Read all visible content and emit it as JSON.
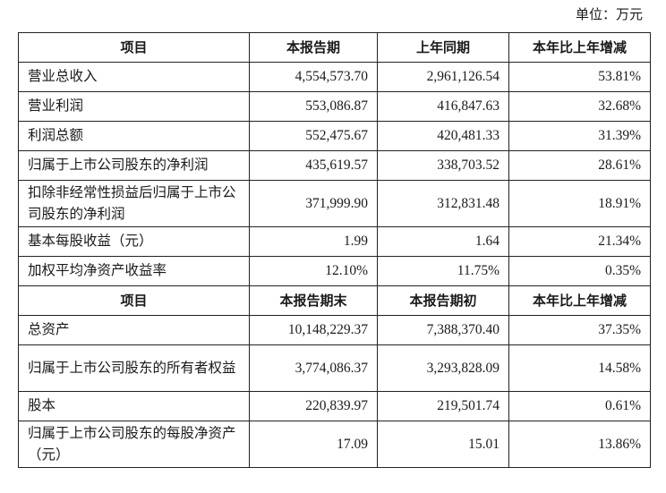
{
  "unit_label": "单位：万元",
  "section1": {
    "headers": [
      "项目",
      "本报告期",
      "上年同期",
      "本年比上年增减"
    ],
    "rows": [
      {
        "item": "营业总收入",
        "current": "4,554,573.70",
        "previous": "2,961,126.54",
        "change": "53.81%"
      },
      {
        "item": "营业利润",
        "current": "553,086.87",
        "previous": "416,847.63",
        "change": "32.68%"
      },
      {
        "item": "利润总额",
        "current": "552,475.67",
        "previous": "420,481.33",
        "change": "31.39%"
      },
      {
        "item": "归属于上市公司股东的净利润",
        "current": "435,619.57",
        "previous": "338,703.52",
        "change": "28.61%"
      },
      {
        "item": "扣除非经常性损益后归属于上市公司股东的净利润",
        "current": "371,999.90",
        "previous": "312,831.48",
        "change": "18.91%"
      },
      {
        "item": "基本每股收益（元）",
        "current": "1.99",
        "previous": "1.64",
        "change": "21.34%"
      },
      {
        "item": "加权平均净资产收益率",
        "current": "12.10%",
        "previous": "11.75%",
        "change": "0.35%"
      }
    ]
  },
  "section2": {
    "headers": [
      "项目",
      "本报告期末",
      "本报告期初",
      "本年比上年增减"
    ],
    "rows": [
      {
        "item": "总资产",
        "current": "10,148,229.37",
        "previous": "7,388,370.40",
        "change": "37.35%"
      },
      {
        "item": "归属于上市公司股东的所有者权益",
        "current": "3,774,086.37",
        "previous": "3,293,828.09",
        "change": "14.58%"
      },
      {
        "item": "股本",
        "current": "220,839.97",
        "previous": "219,501.74",
        "change": "0.61%"
      },
      {
        "item": "归属于上市公司股东的每股净资产（元）",
        "current": "17.09",
        "previous": "15.01",
        "change": "13.86%"
      }
    ]
  }
}
